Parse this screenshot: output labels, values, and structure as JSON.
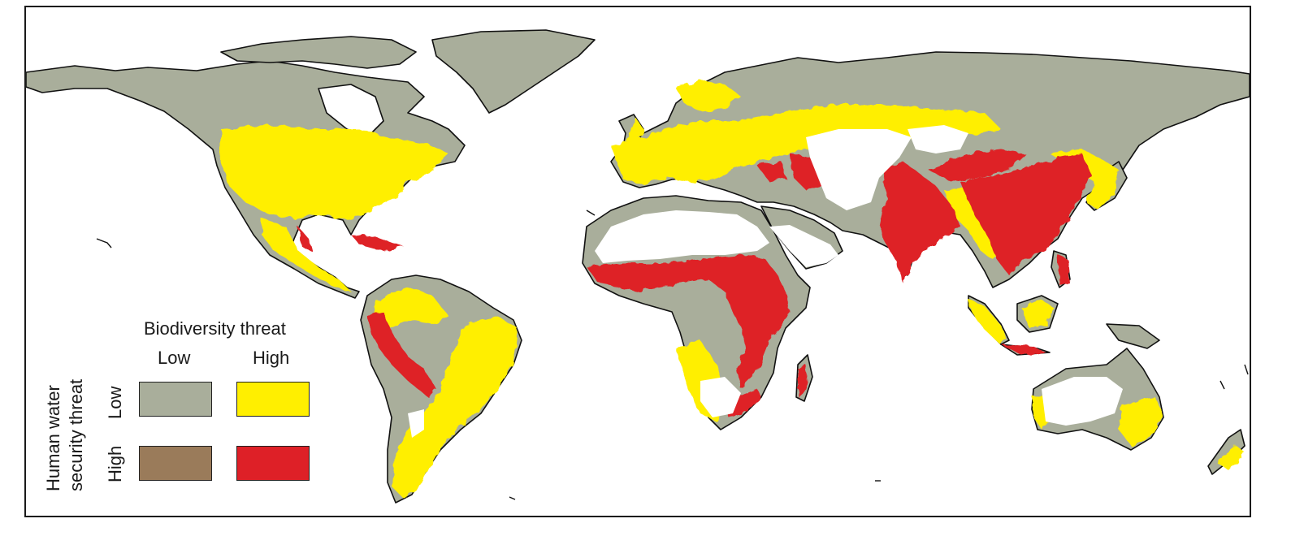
{
  "legend": {
    "column_title": "Biodiversity threat",
    "col_low": "Low",
    "col_high": "High",
    "row_title_line1": "Human water",
    "row_title_line2": "security threat",
    "row_low": "Low",
    "row_high": "High",
    "colors": {
      "low_low": "#a9ae9b",
      "low_high": "#ffef00",
      "high_low": "#9a7b5a",
      "high_high": "#de2027"
    }
  },
  "map_colors": {
    "land_outline": "#111111",
    "no_data": "#ffffff"
  }
}
